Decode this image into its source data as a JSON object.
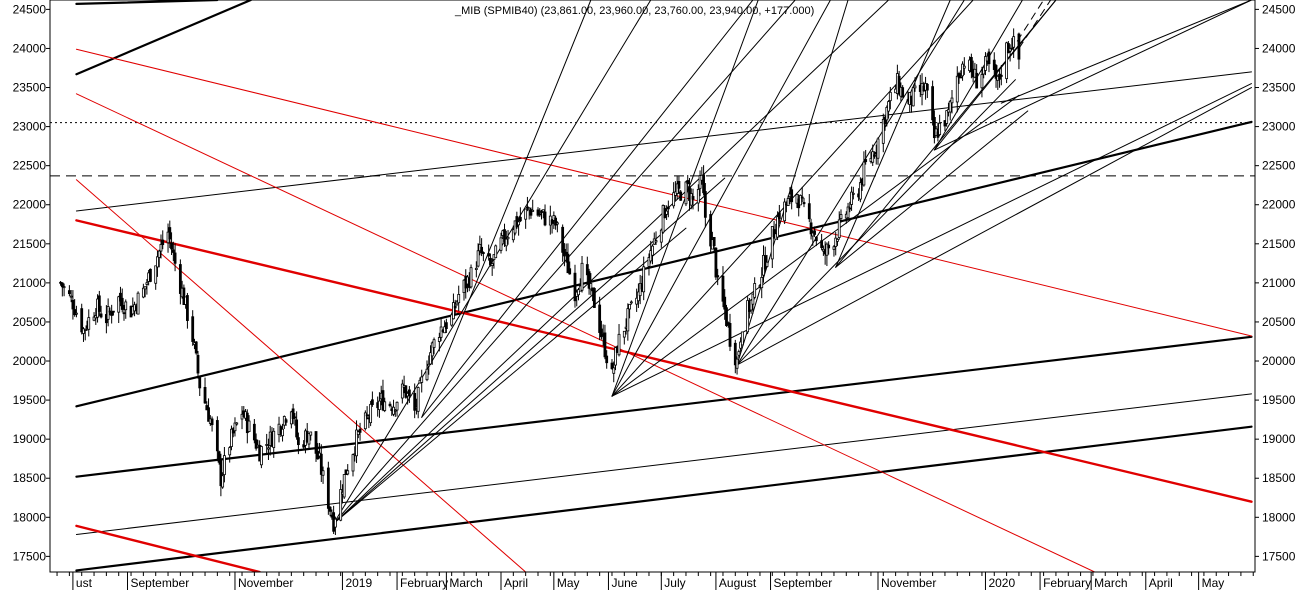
{
  "chart_data": {
    "type": "candlestick",
    "title": "_MIB (SPMIB40) (23,861.00, 23,960.00, 23,760.00, 23,940.00, +177.000)",
    "ylim": [
      17300,
      24620
    ],
    "y_ticks": [
      17500,
      18000,
      18500,
      19000,
      19500,
      20000,
      20500,
      21000,
      21500,
      22000,
      22500,
      23000,
      23500,
      24000,
      24500
    ],
    "y_tick_labels": [
      "17500",
      "18000",
      "18500",
      "19000",
      "19500",
      "20000",
      "20500",
      "21000",
      "21500",
      "22000",
      "22500",
      "23000",
      "23500",
      "24000",
      "24500"
    ],
    "x_months": [
      {
        "label": "ust",
        "date": "2018-08-01"
      },
      {
        "label": "September",
        "date": "2018-09-01"
      },
      {
        "label": "November",
        "date": "2018-11-01"
      },
      {
        "label": "2019",
        "date": "2019-01-01"
      },
      {
        "label": "February",
        "date": "2019-02-01"
      },
      {
        "label": "March",
        "date": "2019-03-01"
      },
      {
        "label": "April",
        "date": "2019-04-01"
      },
      {
        "label": "May",
        "date": "2019-05-01"
      },
      {
        "label": "June",
        "date": "2019-06-01"
      },
      {
        "label": "July",
        "date": "2019-07-01"
      },
      {
        "label": "August",
        "date": "2019-08-01"
      },
      {
        "label": "September",
        "date": "2019-09-01"
      },
      {
        "label": "November",
        "date": "2019-11-01"
      },
      {
        "label": "2020",
        "date": "2020-01-01"
      },
      {
        "label": "February",
        "date": "2020-02-01"
      },
      {
        "label": "March",
        "date": "2020-03-01"
      },
      {
        "label": "April",
        "date": "2020-04-01"
      },
      {
        "label": "May",
        "date": "2020-05-01"
      }
    ],
    "horizontal_levels": [
      {
        "value": 23050,
        "style": "dotted"
      },
      {
        "value": 22370,
        "style": "dashed"
      }
    ],
    "price_path": [
      [
        "2018-07-25",
        21000
      ],
      [
        "2018-08-01",
        20750
      ],
      [
        "2018-08-07",
        20400
      ],
      [
        "2018-08-14",
        20700
      ],
      [
        "2018-08-20",
        20550
      ],
      [
        "2018-08-27",
        20800
      ],
      [
        "2018-09-03",
        20650
      ],
      [
        "2018-09-10",
        20900
      ],
      [
        "2018-09-17",
        21300
      ],
      [
        "2018-09-24",
        21650
      ],
      [
        "2018-09-28",
        21250
      ],
      [
        "2018-10-03",
        20800
      ],
      [
        "2018-10-08",
        20300
      ],
      [
        "2018-10-12",
        19700
      ],
      [
        "2018-10-18",
        19250
      ],
      [
        "2018-10-24",
        18500
      ],
      [
        "2018-10-29",
        18950
      ],
      [
        "2018-11-05",
        19350
      ],
      [
        "2018-11-09",
        19150
      ],
      [
        "2018-11-15",
        18850
      ],
      [
        "2018-11-21",
        19000
      ],
      [
        "2018-11-27",
        19200
      ],
      [
        "2018-12-03",
        19450
      ],
      [
        "2018-12-07",
        18900
      ],
      [
        "2018-12-13",
        19100
      ],
      [
        "2018-12-19",
        18700
      ],
      [
        "2018-12-24",
        18200
      ],
      [
        "2018-12-27",
        17950
      ],
      [
        "2019-01-03",
        18600
      ],
      [
        "2019-01-09",
        19000
      ],
      [
        "2019-01-16",
        19300
      ],
      [
        "2019-01-23",
        19500
      ],
      [
        "2019-01-30",
        19450
      ],
      [
        "2019-02-05",
        19650
      ],
      [
        "2019-02-11",
        19350
      ],
      [
        "2019-02-18",
        20000
      ],
      [
        "2019-02-25",
        20400
      ],
      [
        "2019-03-04",
        20550
      ],
      [
        "2019-03-08",
        20850
      ],
      [
        "2019-03-15",
        21100
      ],
      [
        "2019-03-20",
        21400
      ],
      [
        "2019-03-26",
        21200
      ],
      [
        "2019-04-02",
        21550
      ],
      [
        "2019-04-08",
        21750
      ],
      [
        "2019-04-12",
        21800
      ],
      [
        "2019-04-17",
        21950
      ],
      [
        "2019-04-25",
        21850
      ],
      [
        "2019-05-02",
        21750
      ],
      [
        "2019-05-07",
        21350
      ],
      [
        "2019-05-13",
        20900
      ],
      [
        "2019-05-17",
        21150
      ],
      [
        "2019-05-24",
        20750
      ],
      [
        "2019-05-29",
        20250
      ],
      [
        "2019-06-03",
        19800
      ],
      [
        "2019-06-06",
        20200
      ],
      [
        "2019-06-12",
        20550
      ],
      [
        "2019-06-18",
        20850
      ],
      [
        "2019-06-24",
        21350
      ],
      [
        "2019-06-28",
        21600
      ],
      [
        "2019-07-04",
        22000
      ],
      [
        "2019-07-10",
        22150
      ],
      [
        "2019-07-16",
        22200
      ],
      [
        "2019-07-19",
        22050
      ],
      [
        "2019-07-24",
        22300
      ],
      [
        "2019-07-26",
        21850
      ],
      [
        "2019-07-31",
        21400
      ],
      [
        "2019-08-02",
        20950
      ],
      [
        "2019-08-06",
        20650
      ],
      [
        "2019-08-09",
        20300
      ],
      [
        "2019-08-13",
        20000
      ],
      [
        "2019-08-16",
        20500
      ],
      [
        "2019-08-22",
        20800
      ],
      [
        "2019-08-27",
        21150
      ],
      [
        "2019-09-02",
        21600
      ],
      [
        "2019-09-06",
        21900
      ],
      [
        "2019-09-12",
        22050
      ],
      [
        "2019-09-16",
        22150
      ],
      [
        "2019-09-20",
        21900
      ],
      [
        "2019-09-25",
        21700
      ],
      [
        "2019-10-01",
        21350
      ],
      [
        "2019-10-04",
        21450
      ],
      [
        "2019-10-09",
        21650
      ],
      [
        "2019-10-15",
        21950
      ],
      [
        "2019-10-21",
        22200
      ],
      [
        "2019-10-25",
        22500
      ],
      [
        "2019-10-31",
        22750
      ],
      [
        "2019-11-05",
        23150
      ],
      [
        "2019-11-08",
        23350
      ],
      [
        "2019-11-12",
        23550
      ],
      [
        "2019-11-18",
        23300
      ],
      [
        "2019-11-22",
        23400
      ],
      [
        "2019-11-28",
        23500
      ],
      [
        "2019-12-03",
        22850
      ],
      [
        "2019-12-06",
        23000
      ],
      [
        "2019-12-11",
        23150
      ],
      [
        "2019-12-16",
        23650
      ],
      [
        "2019-12-20",
        23850
      ],
      [
        "2019-12-27",
        23600
      ],
      [
        "2020-01-02",
        23800
      ],
      [
        "2020-01-08",
        23550
      ],
      [
        "2020-01-13",
        24000
      ],
      [
        "2020-01-16",
        24100
      ],
      [
        "2020-01-20",
        23861
      ]
    ],
    "trend_lines": [
      {
        "color": "black",
        "width": 2.2,
        "p1": [
          "2018-08-03",
          23670
        ],
        "p2": [
          "2018-11-10",
          24620
        ]
      },
      {
        "color": "black",
        "width": 2.2,
        "p1": [
          "2018-08-03",
          24570
        ],
        "p2": [
          "2018-10-22",
          24620
        ]
      },
      {
        "color": "black",
        "width": 2.2,
        "p1": [
          "2018-08-03",
          19420
        ],
        "p2": [
          "2020-05-31",
          23060
        ]
      },
      {
        "color": "black",
        "width": 2.2,
        "p1": [
          "2018-08-03",
          18520
        ],
        "p2": [
          "2020-05-31",
          20310
        ]
      },
      {
        "color": "black",
        "width": 2.2,
        "p1": [
          "2018-08-03",
          17320
        ],
        "p2": [
          "2020-05-31",
          19160
        ]
      },
      {
        "color": "black",
        "width": 1,
        "p1": [
          "2018-08-03",
          17780
        ],
        "p2": [
          "2020-05-31",
          19580
        ]
      },
      {
        "color": "black",
        "width": 1,
        "p1": [
          "2018-08-03",
          21920
        ],
        "p2": [
          "2020-05-31",
          23700
        ]
      },
      {
        "color": "red",
        "width": 2.4,
        "p1": [
          "2018-08-03",
          21800
        ],
        "p2": [
          "2020-05-31",
          18200
        ]
      },
      {
        "color": "red",
        "width": 2.4,
        "p1": [
          "2018-08-03",
          17890
        ],
        "p2": [
          "2018-11-15",
          17300
        ]
      },
      {
        "color": "red",
        "width": 1,
        "p1": [
          "2018-08-03",
          23990
        ],
        "p2": [
          "2020-05-31",
          20320
        ]
      },
      {
        "color": "red",
        "width": 1,
        "p1": [
          "2018-08-03",
          23420
        ],
        "p2": [
          "2020-03-03",
          17300
        ]
      },
      {
        "color": "red",
        "width": 1,
        "p1": [
          "2018-08-03",
          22320
        ],
        "p2": [
          "2019-04-15",
          17300
        ]
      },
      {
        "color": "black",
        "width": 1,
        "p1": [
          "2018-12-27",
          17920
        ],
        "p2": [
          "2019-06-25",
          24620
        ]
      },
      {
        "color": "black",
        "width": 1,
        "p1": [
          "2018-12-27",
          17920
        ],
        "p2": [
          "2019-09-15",
          24620
        ]
      },
      {
        "color": "black",
        "width": 1,
        "p1": [
          "2018-12-27",
          17920
        ],
        "p2": [
          "2019-11-07",
          24620
        ]
      },
      {
        "color": "black",
        "width": 1,
        "p1": [
          "2018-12-27",
          17920
        ],
        "p2": [
          "2019-08-06",
          22340
        ]
      },
      {
        "color": "black",
        "width": 1,
        "p1": [
          "2018-12-27",
          17920
        ],
        "p2": [
          "2019-07-15",
          21700
        ]
      },
      {
        "color": "black",
        "width": 1,
        "p1": [
          "2019-02-15",
          19280
        ],
        "p2": [
          "2019-05-22",
          24620
        ]
      },
      {
        "color": "black",
        "width": 1,
        "p1": [
          "2019-02-15",
          19280
        ],
        "p2": [
          "2019-08-22",
          24620
        ]
      },
      {
        "color": "black",
        "width": 1,
        "p1": [
          "2019-06-03",
          19550
        ],
        "p2": [
          "2019-08-25",
          24620
        ]
      },
      {
        "color": "black",
        "width": 1,
        "p1": [
          "2019-06-03",
          19550
        ],
        "p2": [
          "2019-10-05",
          24620
        ]
      },
      {
        "color": "black",
        "width": 1,
        "p1": [
          "2019-06-03",
          19550
        ],
        "p2": [
          "2019-12-25",
          24620
        ]
      },
      {
        "color": "black",
        "width": 1,
        "p1": [
          "2019-06-03",
          19550
        ],
        "p2": [
          "2020-01-20",
          23400
        ]
      },
      {
        "color": "black",
        "width": 1,
        "p1": [
          "2019-06-03",
          19550
        ],
        "p2": [
          "2020-05-31",
          23550
        ]
      },
      {
        "color": "black",
        "width": 1,
        "p1": [
          "2019-08-13",
          19950
        ],
        "p2": [
          "2019-10-15",
          24620
        ]
      },
      {
        "color": "black",
        "width": 1,
        "p1": [
          "2019-08-13",
          19950
        ],
        "p2": [
          "2019-12-20",
          24620
        ]
      },
      {
        "color": "black",
        "width": 1,
        "p1": [
          "2019-08-13",
          19950
        ],
        "p2": [
          "2020-01-18",
          23600
        ]
      },
      {
        "color": "black",
        "width": 1,
        "p1": [
          "2019-08-13",
          19950
        ],
        "p2": [
          "2020-05-31",
          23500
        ]
      },
      {
        "color": "black",
        "width": 1,
        "p1": [
          "2019-10-08",
          21200
        ],
        "p2": [
          "2019-12-12",
          24620
        ]
      },
      {
        "color": "black",
        "width": 1,
        "p1": [
          "2019-10-08",
          21200
        ],
        "p2": [
          "2020-02-10",
          24620
        ]
      },
      {
        "color": "black",
        "width": 1,
        "p1": [
          "2019-10-08",
          21200
        ],
        "p2": [
          "2020-01-25",
          23200
        ]
      },
      {
        "color": "black",
        "width": 1,
        "p1": [
          "2019-12-03",
          22700
        ],
        "p2": [
          "2020-01-22",
          24620
        ]
      },
      {
        "color": "black",
        "width": 1,
        "p1": [
          "2019-12-03",
          22700
        ],
        "p2": [
          "2020-02-10",
          24620
        ]
      },
      {
        "color": "black",
        "width": 1,
        "p1": [
          "2019-12-03",
          22700
        ],
        "p2": [
          "2020-05-31",
          24620
        ]
      },
      {
        "color": "black",
        "width": 1,
        "p1": [
          "2020-01-10",
          23300
        ],
        "p2": [
          "2020-05-31",
          24620
        ]
      }
    ],
    "dashed_lines": [
      {
        "p1": [
          "2020-01-15",
          23950
        ],
        "p2": [
          "2020-02-03",
          24620
        ]
      },
      {
        "p1": [
          "2020-01-20",
          24000
        ],
        "p2": [
          "2020-02-07",
          24620
        ]
      }
    ]
  }
}
